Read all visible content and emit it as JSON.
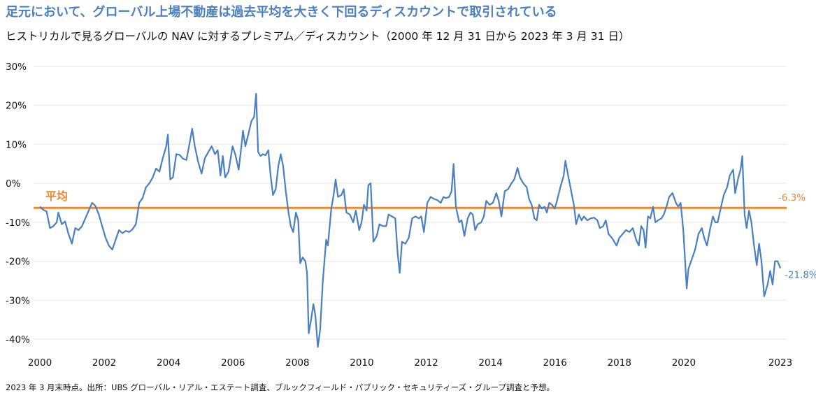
{
  "title": "足元において、グローバル上場不動産は過去平均を大きく下回るディスカウントで取引されている",
  "subtitle": "ヒストリカルで見るグローバルの NAV に対するプレミアム／ディスカウント（2000 年 12 月 31 日から 2023 年 3 月 31 日）",
  "source": "2023 年 3 月末時点。出所：UBS グローバル・リアル・エステート調査、ブルックフィールド・パブリック・セキュリティーズ・グループ調査と予想。",
  "chart_data": {
    "type": "line",
    "title": "ヒストリカルで見るグローバルの NAV に対するプレミアム／ディスカウント（2000 年 12 月 31 日から 2023 年 3 月 31 日）",
    "xlabel": "",
    "ylabel": "",
    "xlim": [
      2000,
      2023
    ],
    "ylim": [
      -40,
      30
    ],
    "x_ticks": [
      "2000",
      "2002",
      "2004",
      "2006",
      "2008",
      "2010",
      "2012",
      "2014",
      "2016",
      "2018",
      "2020",
      "2023"
    ],
    "y_ticks": [
      "30%",
      "20%",
      "10%",
      "0%",
      "-10%",
      "-20%",
      "-30%",
      "-40%"
    ],
    "colors": {
      "series": "#4a7fc1",
      "average": "#ee8833",
      "average_label": "#ee8833",
      "end_label": "#4a7fc1"
    },
    "average": {
      "label": "平均",
      "value": -6.3,
      "value_label": "-6.3%"
    },
    "end_label": "-21.8%",
    "series": [
      {
        "name": "NAV に対するプレミアム／ディスカウント",
        "points": [
          [
            2000.0,
            -6
          ],
          [
            2000.1,
            -6.8
          ],
          [
            2000.2,
            -7.2
          ],
          [
            2000.3,
            -11.5
          ],
          [
            2000.4,
            -11
          ],
          [
            2000.5,
            -10
          ],
          [
            2000.55,
            -7.5
          ],
          [
            2000.65,
            -10.5
          ],
          [
            2000.75,
            -9.8
          ],
          [
            2000.85,
            -13
          ],
          [
            2000.95,
            -15.5
          ],
          [
            2001.05,
            -11.5
          ],
          [
            2001.15,
            -12
          ],
          [
            2001.25,
            -11
          ],
          [
            2001.35,
            -9
          ],
          [
            2001.45,
            -7
          ],
          [
            2001.55,
            -5
          ],
          [
            2001.65,
            -5.8
          ],
          [
            2001.75,
            -8
          ],
          [
            2001.85,
            -11
          ],
          [
            2001.95,
            -14
          ],
          [
            2002.05,
            -16
          ],
          [
            2002.15,
            -17
          ],
          [
            2002.25,
            -14.5
          ],
          [
            2002.35,
            -12
          ],
          [
            2002.45,
            -12.8
          ],
          [
            2002.55,
            -12.2
          ],
          [
            2002.65,
            -12.5
          ],
          [
            2002.75,
            -11.8
          ],
          [
            2002.85,
            -10.5
          ],
          [
            2002.95,
            -5
          ],
          [
            2003.05,
            -3.8
          ],
          [
            2003.15,
            -1
          ],
          [
            2003.25,
            0
          ],
          [
            2003.35,
            1.5
          ],
          [
            2003.45,
            3.8
          ],
          [
            2003.55,
            3
          ],
          [
            2003.65,
            6.5
          ],
          [
            2003.75,
            9.5
          ],
          [
            2003.8,
            12.5
          ],
          [
            2003.87,
            1
          ],
          [
            2003.95,
            1.5
          ],
          [
            2004.05,
            7.5
          ],
          [
            2004.15,
            7.3
          ],
          [
            2004.25,
            6.3
          ],
          [
            2004.35,
            6
          ],
          [
            2004.45,
            10.5
          ],
          [
            2004.52,
            14
          ],
          [
            2004.6,
            9.5
          ],
          [
            2004.7,
            5.5
          ],
          [
            2004.8,
            2.5
          ],
          [
            2004.9,
            6.5
          ],
          [
            2005.0,
            8
          ],
          [
            2005.1,
            9.5
          ],
          [
            2005.2,
            7.5
          ],
          [
            2005.28,
            8.5
          ],
          [
            2005.36,
            2
          ],
          [
            2005.43,
            7
          ],
          [
            2005.5,
            1.5
          ],
          [
            2005.6,
            3
          ],
          [
            2005.72,
            9.5
          ],
          [
            2005.8,
            7.5
          ],
          [
            2005.9,
            3.5
          ],
          [
            2005.97,
            8.5
          ],
          [
            2006.03,
            13.5
          ],
          [
            2006.1,
            9.5
          ],
          [
            2006.2,
            13
          ],
          [
            2006.28,
            16
          ],
          [
            2006.36,
            17
          ],
          [
            2006.42,
            23
          ],
          [
            2006.48,
            8
          ],
          [
            2006.55,
            7
          ],
          [
            2006.62,
            7.5
          ],
          [
            2006.7,
            7.2
          ],
          [
            2006.78,
            8.5
          ],
          [
            2006.85,
            2
          ],
          [
            2006.92,
            -3
          ],
          [
            2007.0,
            -1.5
          ],
          [
            2007.08,
            4.5
          ],
          [
            2007.15,
            7.5
          ],
          [
            2007.22,
            4.5
          ],
          [
            2007.3,
            -2
          ],
          [
            2007.38,
            -7.5
          ],
          [
            2007.45,
            -11
          ],
          [
            2007.52,
            -12.5
          ],
          [
            2007.6,
            -7.5
          ],
          [
            2007.67,
            -9.5
          ],
          [
            2007.73,
            -20.5
          ],
          [
            2007.8,
            -19
          ],
          [
            2007.88,
            -20
          ],
          [
            2007.93,
            -23
          ],
          [
            2007.98,
            -38.5
          ],
          [
            2008.05,
            -35
          ],
          [
            2008.12,
            -31
          ],
          [
            2008.18,
            -34
          ],
          [
            2008.25,
            -42
          ],
          [
            2008.32,
            -37.5
          ],
          [
            2008.4,
            -25
          ],
          [
            2008.5,
            -14.5
          ],
          [
            2008.55,
            -16
          ],
          [
            2008.65,
            -6.5
          ],
          [
            2008.72,
            -3
          ],
          [
            2008.78,
            1
          ],
          [
            2008.85,
            -3.5
          ],
          [
            2008.95,
            -3
          ],
          [
            2009.02,
            -1.5
          ],
          [
            2009.1,
            -7.5
          ],
          [
            2009.2,
            -8
          ],
          [
            2009.3,
            -10
          ],
          [
            2009.38,
            -7
          ],
          [
            2009.48,
            -12
          ],
          [
            2009.55,
            -10
          ],
          [
            2009.62,
            -5.5
          ],
          [
            2009.7,
            -7
          ],
          [
            2009.75,
            -0.5
          ],
          [
            2009.82,
            0
          ],
          [
            2009.9,
            -15
          ],
          [
            2010.0,
            -13.5
          ],
          [
            2010.08,
            -10.5
          ],
          [
            2010.18,
            -11
          ],
          [
            2010.28,
            -11
          ],
          [
            2010.35,
            -8
          ],
          [
            2010.45,
            -8.5
          ],
          [
            2010.55,
            -9
          ],
          [
            2010.62,
            -18
          ],
          [
            2010.68,
            -23
          ],
          [
            2010.75,
            -15
          ],
          [
            2010.85,
            -15.5
          ],
          [
            2010.95,
            -14
          ],
          [
            2011.05,
            -9
          ],
          [
            2011.15,
            -8.5
          ],
          [
            2011.25,
            -9
          ],
          [
            2011.32,
            -8.5
          ],
          [
            2011.4,
            -12.5
          ],
          [
            2011.5,
            -5
          ],
          [
            2011.6,
            -3.5
          ],
          [
            2011.7,
            -4
          ],
          [
            2011.8,
            -4.3
          ],
          [
            2011.9,
            -5
          ],
          [
            2011.98,
            -3.5
          ],
          [
            2012.05,
            -3.8
          ],
          [
            2012.15,
            -3.5
          ],
          [
            2012.22,
            -2
          ],
          [
            2012.28,
            5
          ],
          [
            2012.35,
            -6
          ],
          [
            2012.45,
            -10
          ],
          [
            2012.52,
            -9.5
          ],
          [
            2012.6,
            -13.5
          ],
          [
            2012.7,
            -9
          ],
          [
            2012.78,
            -7.5
          ],
          [
            2012.85,
            -8
          ],
          [
            2012.92,
            -12
          ],
          [
            2013.0,
            -10.5
          ],
          [
            2013.1,
            -10
          ],
          [
            2013.18,
            -8.5
          ],
          [
            2013.25,
            -4.5
          ],
          [
            2013.35,
            -5.5
          ],
          [
            2013.45,
            -5
          ],
          [
            2013.55,
            -2.5
          ],
          [
            2013.62,
            -4.5
          ],
          [
            2013.7,
            -8.5
          ],
          [
            2013.8,
            -2
          ],
          [
            2013.9,
            -1.5
          ],
          [
            2014.0,
            0
          ],
          [
            2014.08,
            1
          ],
          [
            2014.18,
            4
          ],
          [
            2014.25,
            1.5
          ],
          [
            2014.35,
            0
          ],
          [
            2014.45,
            -1
          ],
          [
            2014.52,
            -4
          ],
          [
            2014.6,
            -5.5
          ],
          [
            2014.68,
            -9
          ],
          [
            2014.75,
            -9.5
          ],
          [
            2014.82,
            -5.5
          ],
          [
            2014.9,
            -6.5
          ],
          [
            2014.98,
            -6
          ],
          [
            2015.05,
            -7.5
          ],
          [
            2015.12,
            -5
          ],
          [
            2015.2,
            -5.5
          ],
          [
            2015.28,
            -6.5
          ],
          [
            2015.35,
            -4.5
          ],
          [
            2015.45,
            -1
          ],
          [
            2015.55,
            2
          ],
          [
            2015.6,
            5.8
          ],
          [
            2015.68,
            2
          ],
          [
            2015.76,
            -1.5
          ],
          [
            2015.85,
            -5.5
          ],
          [
            2015.92,
            -10.5
          ],
          [
            2016.0,
            -8
          ],
          [
            2016.08,
            -9.5
          ],
          [
            2016.15,
            -8.5
          ],
          [
            2016.25,
            -9.5
          ],
          [
            2016.35,
            -9
          ],
          [
            2016.45,
            -8.8
          ],
          [
            2016.55,
            -9.5
          ],
          [
            2016.62,
            -11.5
          ],
          [
            2016.72,
            -11
          ],
          [
            2016.8,
            -9.5
          ],
          [
            2016.88,
            -13
          ],
          [
            2016.98,
            -14
          ],
          [
            2017.05,
            -15
          ],
          [
            2017.12,
            -16
          ],
          [
            2017.2,
            -14
          ],
          [
            2017.3,
            -13
          ],
          [
            2017.4,
            -12
          ],
          [
            2017.5,
            -12.5
          ],
          [
            2017.6,
            -11.5
          ],
          [
            2017.7,
            -14.5
          ],
          [
            2017.78,
            -16
          ],
          [
            2017.85,
            -11
          ],
          [
            2017.92,
            -12
          ],
          [
            2017.98,
            -16.5
          ],
          [
            2018.05,
            -8.5
          ],
          [
            2018.12,
            -9
          ],
          [
            2018.2,
            -6
          ],
          [
            2018.27,
            -10
          ],
          [
            2018.35,
            -9.5
          ],
          [
            2018.45,
            -9
          ],
          [
            2018.52,
            -8
          ],
          [
            2018.6,
            -6
          ],
          [
            2018.68,
            -3.5
          ],
          [
            2018.78,
            -2.5
          ],
          [
            2018.88,
            -5
          ],
          [
            2018.95,
            -6
          ],
          [
            2019.02,
            -5
          ],
          [
            2019.1,
            -12
          ],
          [
            2019.2,
            -27
          ],
          [
            2019.25,
            -22
          ],
          [
            2019.35,
            -19.5
          ],
          [
            2019.45,
            -17
          ],
          [
            2019.55,
            -13
          ],
          [
            2019.65,
            -11.5
          ],
          [
            2019.72,
            -14
          ],
          [
            2019.8,
            -16
          ],
          [
            2019.9,
            -11.5
          ],
          [
            2019.98,
            -8.5
          ],
          [
            2020.05,
            -10
          ],
          [
            2020.12,
            -10
          ],
          [
            2020.22,
            -6
          ],
          [
            2020.3,
            -3
          ],
          [
            2020.4,
            -1
          ],
          [
            2020.48,
            2
          ],
          [
            2020.58,
            3.5
          ],
          [
            2020.64,
            -2.5
          ],
          [
            2020.72,
            1
          ],
          [
            2020.8,
            3.5
          ],
          [
            2020.85,
            7
          ],
          [
            2020.92,
            -8
          ],
          [
            2020.98,
            -11.5
          ],
          [
            2021.05,
            -7
          ],
          [
            2021.12,
            -10
          ],
          [
            2021.2,
            -16
          ],
          [
            2021.28,
            -21
          ],
          [
            2021.35,
            -15.5
          ],
          [
            2021.42,
            -20
          ],
          [
            2021.5,
            -29
          ],
          [
            2021.6,
            -26
          ],
          [
            2021.68,
            -22.5
          ],
          [
            2021.75,
            -26
          ],
          [
            2021.82,
            -20
          ],
          [
            2021.9,
            -20
          ],
          [
            2021.98,
            -21.8
          ]
        ]
      }
    ]
  }
}
